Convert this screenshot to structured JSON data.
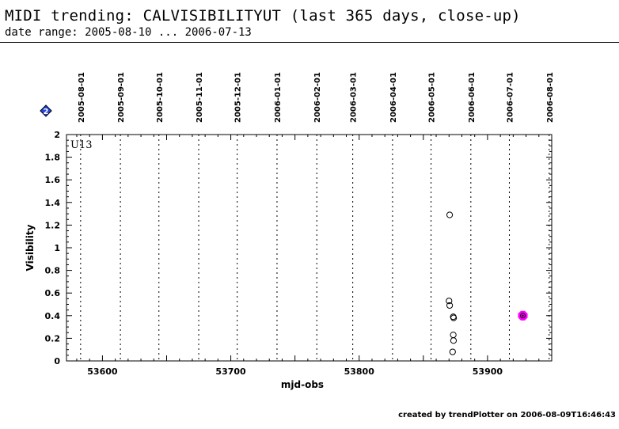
{
  "header": {
    "title": "MIDI trending: CALVISIBILITYUT (last 365 days, close-up)",
    "subtitle": "date range: 2005-08-10 ... 2006-07-13"
  },
  "footer": {
    "credit": "created by trendPlotter on 2006-08-09T16:46:43"
  },
  "legend": {
    "marker_label": "2",
    "marker_color": "#2244dd"
  },
  "chart_data": {
    "type": "scatter",
    "title": "",
    "xlabel": "mjd-obs",
    "ylabel": "Visibility",
    "panel_label": "U13",
    "xlim": [
      53572,
      53950
    ],
    "ylim": [
      0,
      2
    ],
    "x_ticks": [
      53600,
      53700,
      53800,
      53900
    ],
    "y_ticks": [
      0,
      0.2,
      0.4,
      0.6,
      0.8,
      1,
      1.2,
      1.4,
      1.6,
      1.8,
      2
    ],
    "y_tick_labels": [
      "0",
      "0.2",
      "0.4",
      "0.6",
      "0.8",
      "1",
      "1.2",
      "1.4",
      "1.6",
      "1.8",
      "2"
    ],
    "x_tick_labels": [
      "53600",
      "53700",
      "53800",
      "53900"
    ],
    "month_markers": [
      {
        "label": "2005-08-01",
        "mjd": 53583
      },
      {
        "label": "2005-09-01",
        "mjd": 53614
      },
      {
        "label": "2005-10-01",
        "mjd": 53644
      },
      {
        "label": "2005-11-01",
        "mjd": 53675
      },
      {
        "label": "2005-12-01",
        "mjd": 53705
      },
      {
        "label": "2006-01-01",
        "mjd": 53736
      },
      {
        "label": "2006-02-01",
        "mjd": 53767
      },
      {
        "label": "2006-03-01",
        "mjd": 53795
      },
      {
        "label": "2006-04-01",
        "mjd": 53826
      },
      {
        "label": "2006-05-01",
        "mjd": 53856
      },
      {
        "label": "2006-06-01",
        "mjd": 53887
      },
      {
        "label": "2006-07-01",
        "mjd": 53917
      },
      {
        "label": "2006-08-01",
        "mjd": 53948
      }
    ],
    "series": [
      {
        "marker": "open-circle",
        "color": "#000000",
        "points": [
          {
            "x": 53870.5,
            "y": 1.29
          },
          {
            "x": 53870.0,
            "y": 0.53
          },
          {
            "x": 53870.5,
            "y": 0.49
          },
          {
            "x": 53873.3,
            "y": 0.39
          },
          {
            "x": 53873.6,
            "y": 0.38
          },
          {
            "x": 53873.3,
            "y": 0.23
          },
          {
            "x": 53873.5,
            "y": 0.18
          },
          {
            "x": 53872.8,
            "y": 0.08
          }
        ]
      },
      {
        "marker": "highlight",
        "color": "#ff00ff",
        "points": [
          {
            "x": 53927.5,
            "y": 0.4
          }
        ]
      }
    ]
  }
}
